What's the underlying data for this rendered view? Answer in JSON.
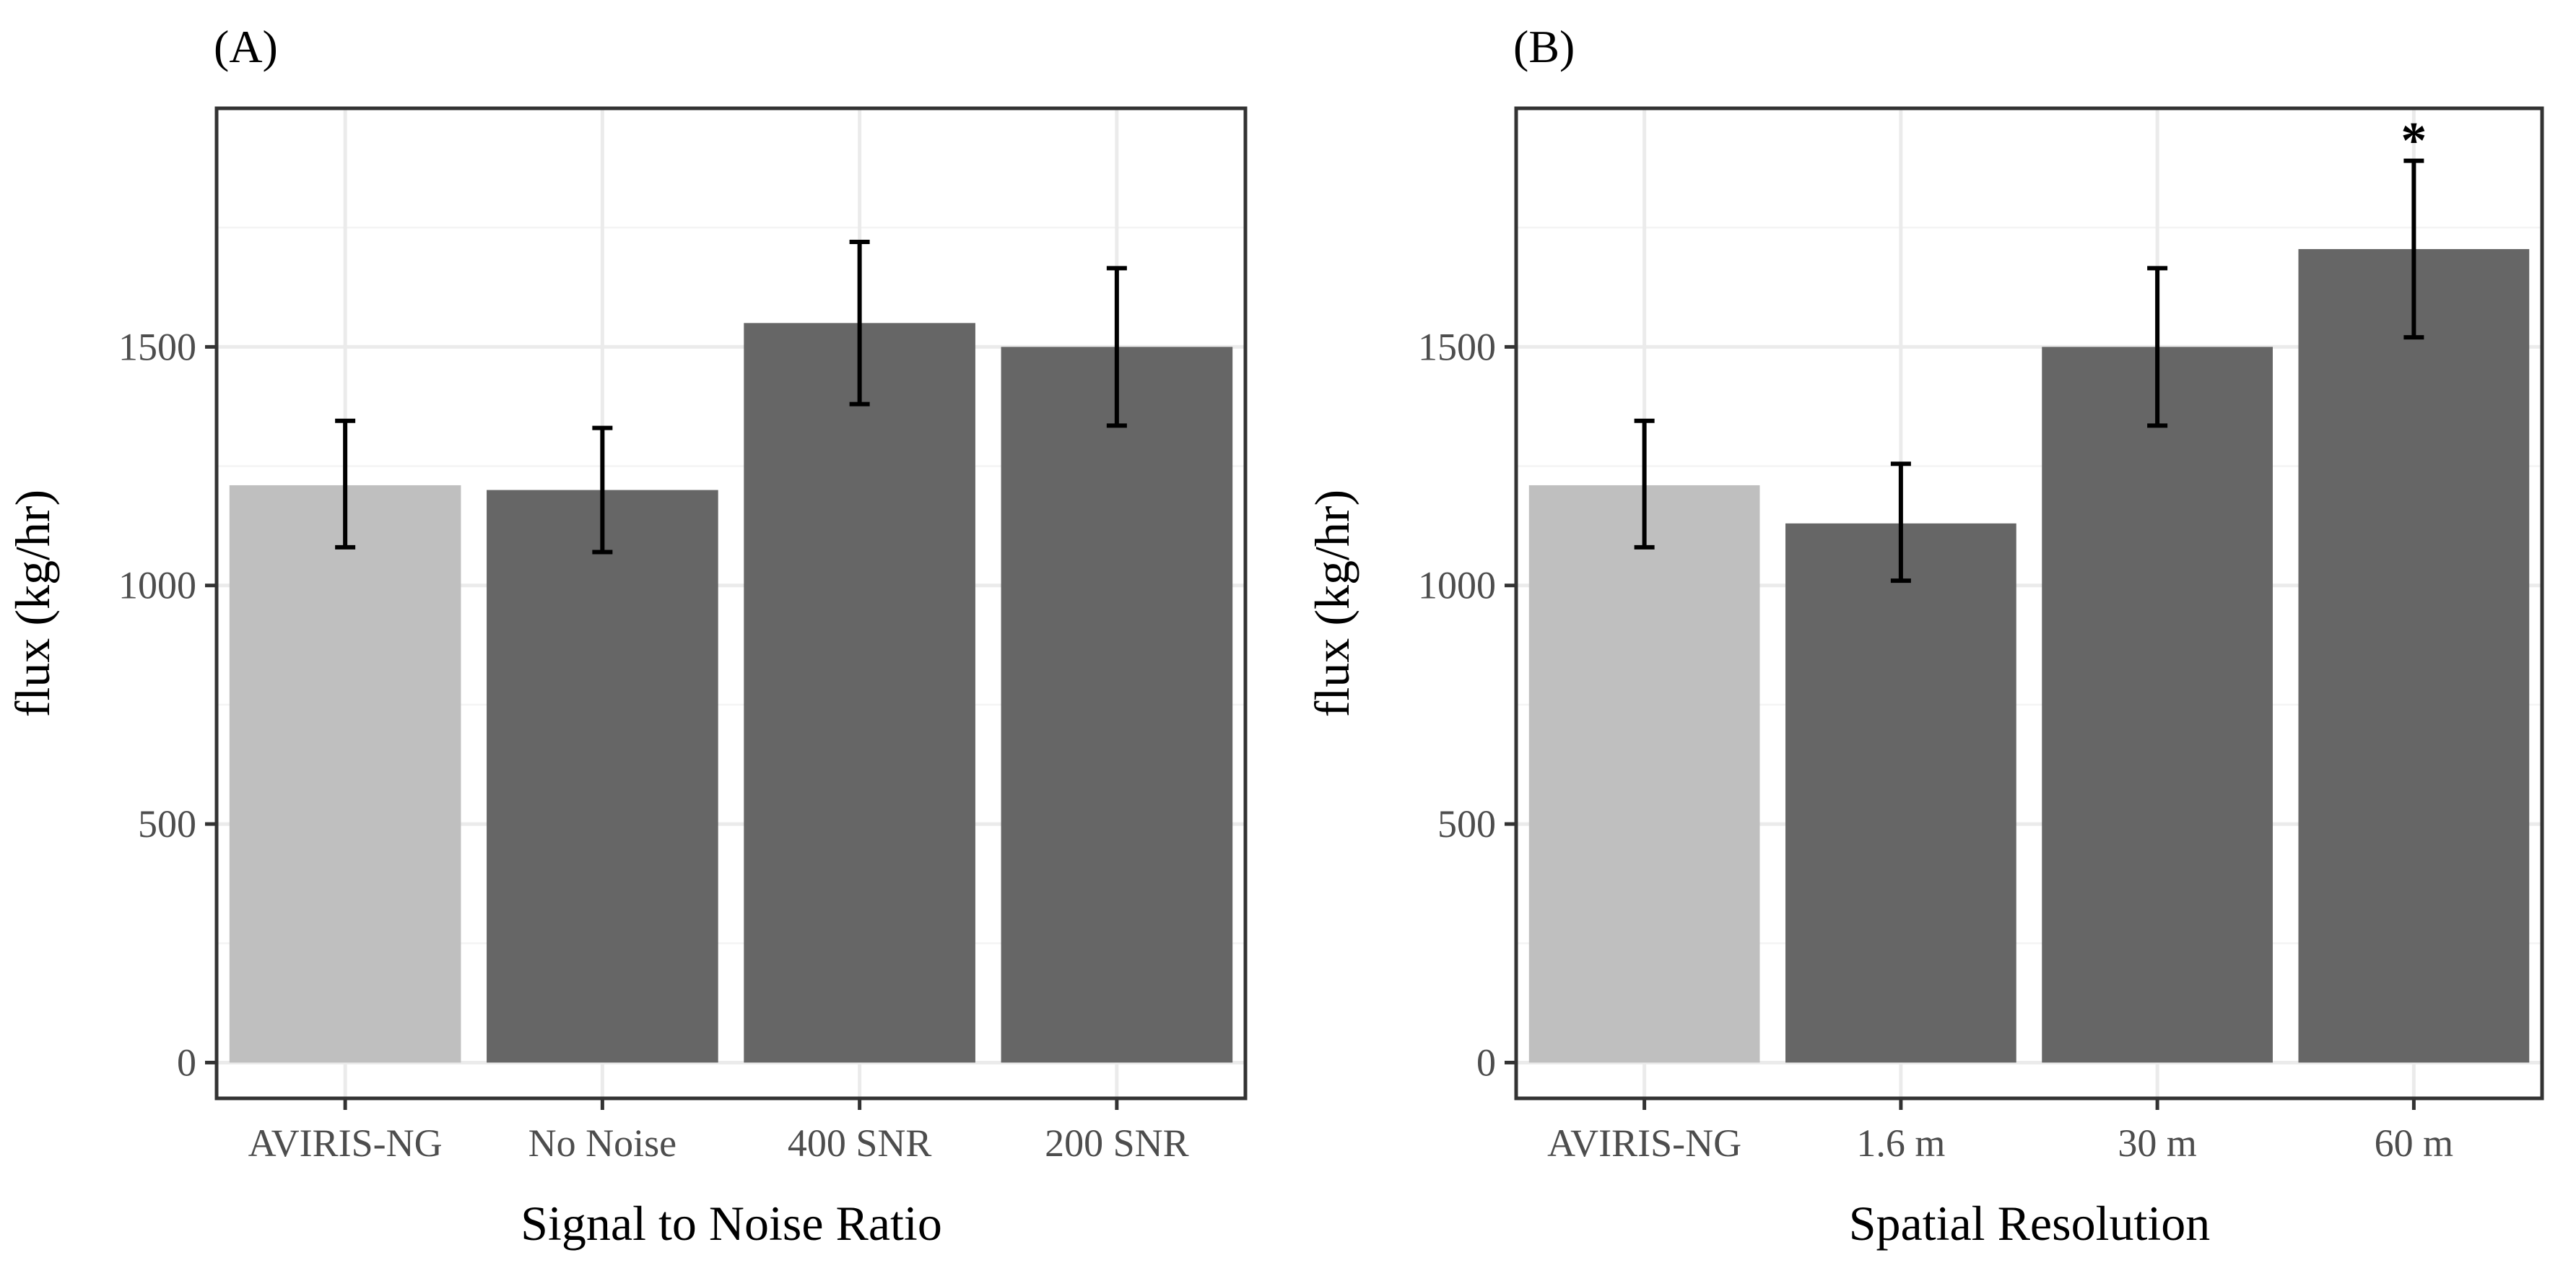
{
  "chart_data": [
    {
      "type": "bar",
      "panel_label": "(A)",
      "xlabel": "Signal to Noise Ratio",
      "ylabel": "flux (kg/hr)",
      "categories": [
        "AVIRIS-NG",
        "No Noise",
        "400 SNR",
        "200 SNR"
      ],
      "values": [
        1210,
        1200,
        1550,
        1500
      ],
      "error_low": [
        1080,
        1070,
        1380,
        1335
      ],
      "error_high": [
        1345,
        1330,
        1720,
        1665
      ],
      "bar_colors": [
        "#bfbfbf",
        "#666666",
        "#666666",
        "#666666"
      ],
      "annotations": [
        "",
        "",
        "",
        ""
      ],
      "ylim": [
        -75,
        2000
      ],
      "yticks": [
        0,
        500,
        1000,
        1500
      ],
      "ytick_labels": [
        "0",
        "500",
        "1000",
        "1500"
      ],
      "grid": true
    },
    {
      "type": "bar",
      "panel_label": "(B)",
      "xlabel": "Spatial Resolution",
      "ylabel": "flux (kg/hr)",
      "categories": [
        "AVIRIS-NG",
        "1.6 m",
        "30 m",
        "60 m"
      ],
      "values": [
        1210,
        1130,
        1500,
        1705
      ],
      "error_low": [
        1080,
        1010,
        1335,
        1520
      ],
      "error_high": [
        1345,
        1255,
        1665,
        1890
      ],
      "bar_colors": [
        "#bfbfbf",
        "#666666",
        "#666666",
        "#666666"
      ],
      "annotations": [
        "",
        "",
        "",
        "*"
      ],
      "ylim": [
        -75,
        2000
      ],
      "yticks": [
        0,
        500,
        1000,
        1500
      ],
      "ytick_labels": [
        "0",
        "500",
        "1000",
        "1500"
      ],
      "grid": true
    }
  ],
  "colors": {
    "grid_major": "#ebebeb",
    "grid_minor": "#f4f4f4",
    "panel_border": "#333333",
    "tick": "#333333",
    "error_bar": "#000000"
  }
}
